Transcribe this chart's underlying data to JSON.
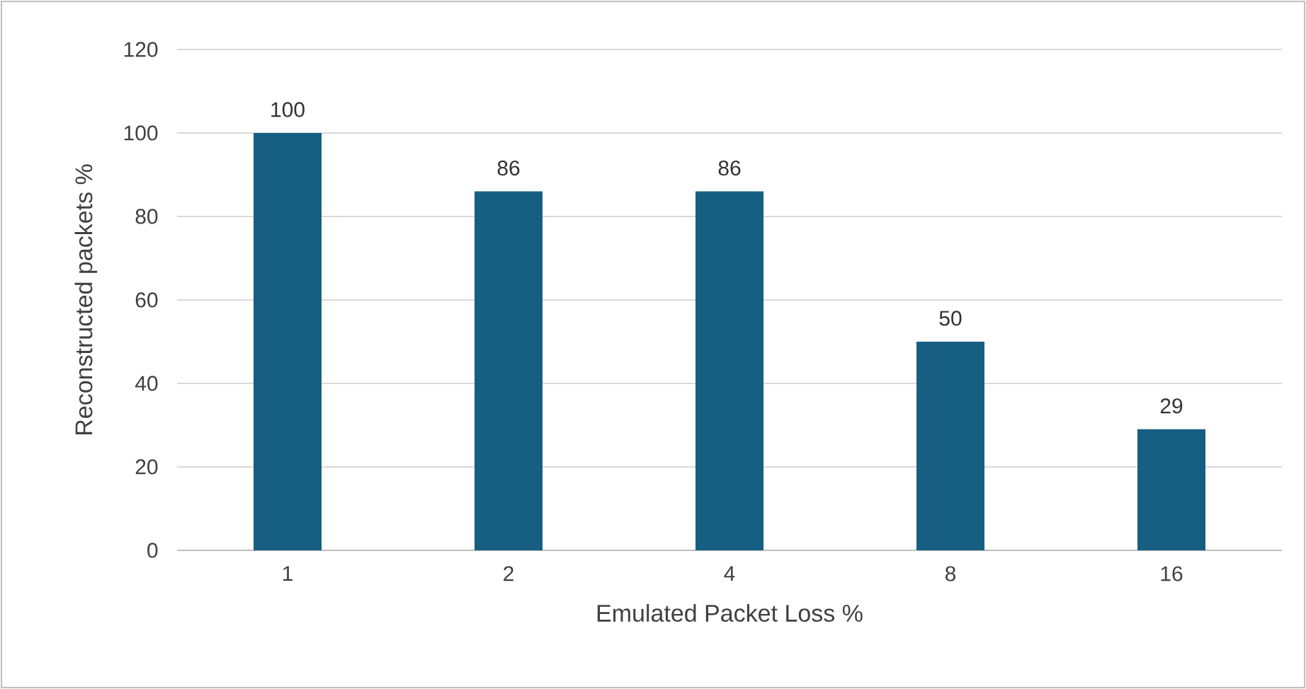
{
  "chart_data": {
    "type": "bar",
    "xlabel": "Emulated Packet Loss %",
    "ylabel": "Reconstructed packets %",
    "categories": [
      "1",
      "2",
      "4",
      "8",
      "16"
    ],
    "values": [
      100,
      86,
      86,
      50,
      29
    ],
    "color": "#175f82",
    "ylim": [
      0,
      120
    ],
    "yticks": [
      0,
      20,
      40,
      60,
      80,
      100,
      120
    ],
    "grid": "y",
    "data_labels": true
  }
}
